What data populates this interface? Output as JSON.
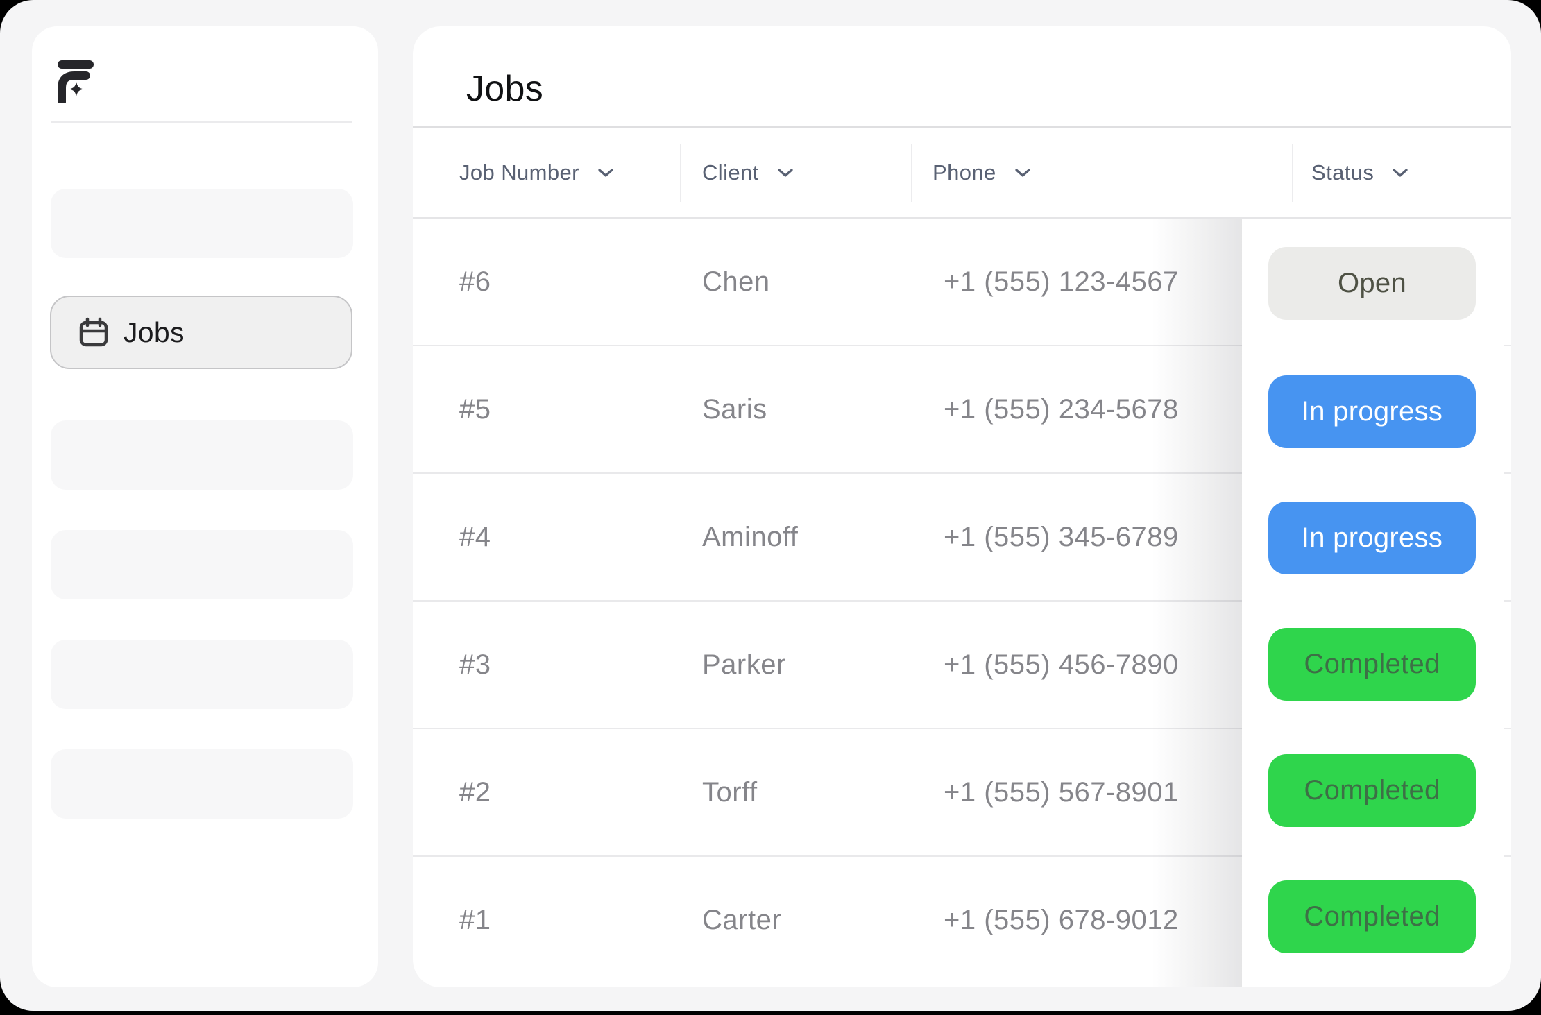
{
  "app": {
    "logo": "flow-sparkle-logo",
    "logo_color": "#26262a"
  },
  "sidebar": {
    "active_item": {
      "label": "Jobs",
      "icon": "calendar-icon"
    },
    "skeleton_items": 5
  },
  "main": {
    "title": "Jobs",
    "table": {
      "columns": [
        {
          "label": "Job Number"
        },
        {
          "label": "Client"
        },
        {
          "label": "Phone"
        },
        {
          "label": "Status"
        }
      ],
      "rows": [
        {
          "job_number": "#6",
          "client": "Chen",
          "phone": "+1 (555) 123-4567",
          "status": "Open",
          "status_type": "open"
        },
        {
          "job_number": "#5",
          "client": "Saris",
          "phone": "+1 (555) 234-5678",
          "status": "In progress",
          "status_type": "in_progress"
        },
        {
          "job_number": "#4",
          "client": "Aminoff",
          "phone": "+1 (555) 345-6789",
          "status": "In progress",
          "status_type": "in_progress"
        },
        {
          "job_number": "#3",
          "client": "Parker",
          "phone": "+1 (555) 456-7890",
          "status": "Completed",
          "status_type": "completed"
        },
        {
          "job_number": "#2",
          "client": "Torff",
          "phone": "+1 (555) 567-8901",
          "status": "Completed",
          "status_type": "completed"
        },
        {
          "job_number": "#1",
          "client": "Carter",
          "phone": "+1 (555) 678-9012",
          "status": "Completed",
          "status_type": "completed"
        }
      ]
    },
    "status_styles": {
      "open": {
        "bg": "#ebebe9",
        "text": "#4e5144"
      },
      "in_progress": {
        "bg": "#4794f1",
        "text": "#ffffff"
      },
      "completed": {
        "bg": "#2fd54c",
        "text": "#3d7046"
      }
    }
  }
}
